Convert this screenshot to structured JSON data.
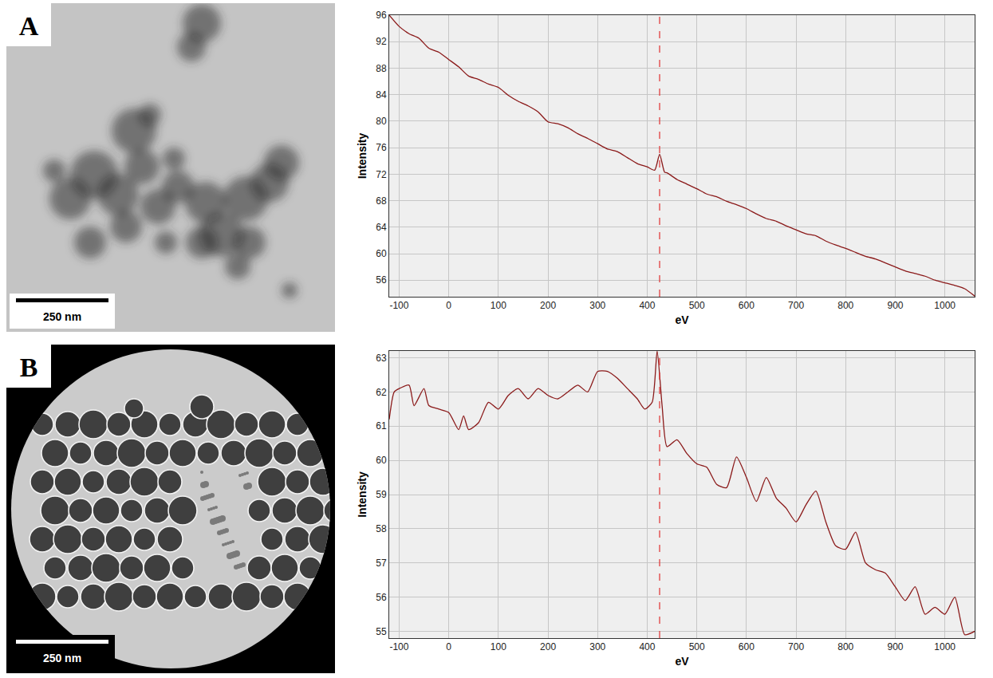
{
  "figure": {
    "panels": [
      {
        "label": "A",
        "scale_bar": "250 nm"
      },
      {
        "label": "B",
        "scale_bar": "250 nm"
      }
    ]
  },
  "chart_data": [
    {
      "type": "line",
      "x_label": "eV",
      "y_label": "Intensity",
      "color": "#8b1a1a",
      "grid": true,
      "x": [
        -120,
        -100,
        -80,
        -60,
        -40,
        -20,
        0,
        20,
        40,
        60,
        80,
        100,
        120,
        140,
        160,
        180,
        200,
        220,
        240,
        260,
        280,
        300,
        320,
        340,
        360,
        380,
        400,
        415,
        425,
        435,
        440,
        460,
        480,
        500,
        520,
        540,
        560,
        580,
        600,
        620,
        640,
        660,
        680,
        700,
        720,
        740,
        760,
        780,
        800,
        820,
        840,
        860,
        880,
        900,
        920,
        940,
        960,
        980,
        1000,
        1020,
        1040,
        1060
      ],
      "values": [
        96.0,
        94.3,
        93.2,
        92.5,
        91.0,
        90.4,
        89.3,
        88.2,
        86.8,
        86.3,
        85.6,
        85.1,
        83.9,
        83.0,
        82.3,
        81.4,
        79.9,
        79.6,
        79.0,
        78.1,
        77.4,
        76.6,
        75.8,
        75.4,
        74.5,
        73.6,
        73.1,
        72.6,
        75.0,
        72.3,
        72.2,
        71.2,
        70.5,
        69.8,
        69.0,
        68.6,
        67.9,
        67.4,
        66.8,
        66.0,
        65.3,
        64.9,
        64.2,
        63.6,
        63.0,
        62.7,
        61.9,
        61.3,
        60.8,
        60.2,
        59.6,
        59.2,
        58.6,
        58.0,
        57.4,
        57.0,
        56.6,
        56.0,
        55.6,
        55.2,
        54.7,
        53.6
      ],
      "xlim": [
        -120,
        1060
      ],
      "xticks": [
        -100,
        0,
        100,
        200,
        300,
        400,
        500,
        600,
        700,
        800,
        900,
        1000
      ],
      "ylim": [
        53.5,
        96
      ],
      "yticks": [
        56,
        60,
        64,
        68,
        72,
        76,
        80,
        84,
        88,
        92,
        96
      ],
      "reference_line": {
        "x": 425,
        "color": "#e03030",
        "line_style": "dash"
      }
    },
    {
      "type": "line",
      "x_label": "eV",
      "y_label": "Intensity",
      "color": "#8b1a1a",
      "grid": true,
      "x": [
        -120,
        -110,
        -100,
        -80,
        -70,
        -50,
        -40,
        -20,
        0,
        20,
        30,
        40,
        60,
        80,
        100,
        120,
        140,
        160,
        180,
        200,
        220,
        240,
        260,
        280,
        300,
        320,
        340,
        360,
        380,
        395,
        410,
        420,
        430,
        440,
        460,
        480,
        500,
        520,
        540,
        560,
        580,
        600,
        620,
        640,
        660,
        680,
        700,
        720,
        740,
        760,
        780,
        800,
        820,
        840,
        860,
        880,
        900,
        920,
        940,
        960,
        980,
        1000,
        1020,
        1040,
        1060
      ],
      "values": [
        61.2,
        62.0,
        62.1,
        62.2,
        61.6,
        62.1,
        61.6,
        61.5,
        61.4,
        60.9,
        61.3,
        60.9,
        61.1,
        61.7,
        61.5,
        61.9,
        62.1,
        61.8,
        62.1,
        61.9,
        61.8,
        62.0,
        62.2,
        62.0,
        62.6,
        62.6,
        62.4,
        62.1,
        61.8,
        61.5,
        61.7,
        63.2,
        61.6,
        60.4,
        60.6,
        60.2,
        59.9,
        59.8,
        59.3,
        59.2,
        60.1,
        59.5,
        58.8,
        59.5,
        58.9,
        58.6,
        58.2,
        58.7,
        59.1,
        58.2,
        57.5,
        57.4,
        57.9,
        57.0,
        56.8,
        56.7,
        56.3,
        55.9,
        56.3,
        55.5,
        55.7,
        55.5,
        56.0,
        54.9,
        55.0
      ],
      "xlim": [
        -120,
        1060
      ],
      "xticks": [
        -100,
        0,
        100,
        200,
        300,
        400,
        500,
        600,
        700,
        800,
        900,
        1000
      ],
      "ylim": [
        54.8,
        63.2
      ],
      "yticks": [
        55,
        56,
        57,
        58,
        59,
        60,
        61,
        62,
        63
      ],
      "reference_line": {
        "x": 425,
        "color": "#e03030",
        "line_style": "dash"
      }
    }
  ]
}
